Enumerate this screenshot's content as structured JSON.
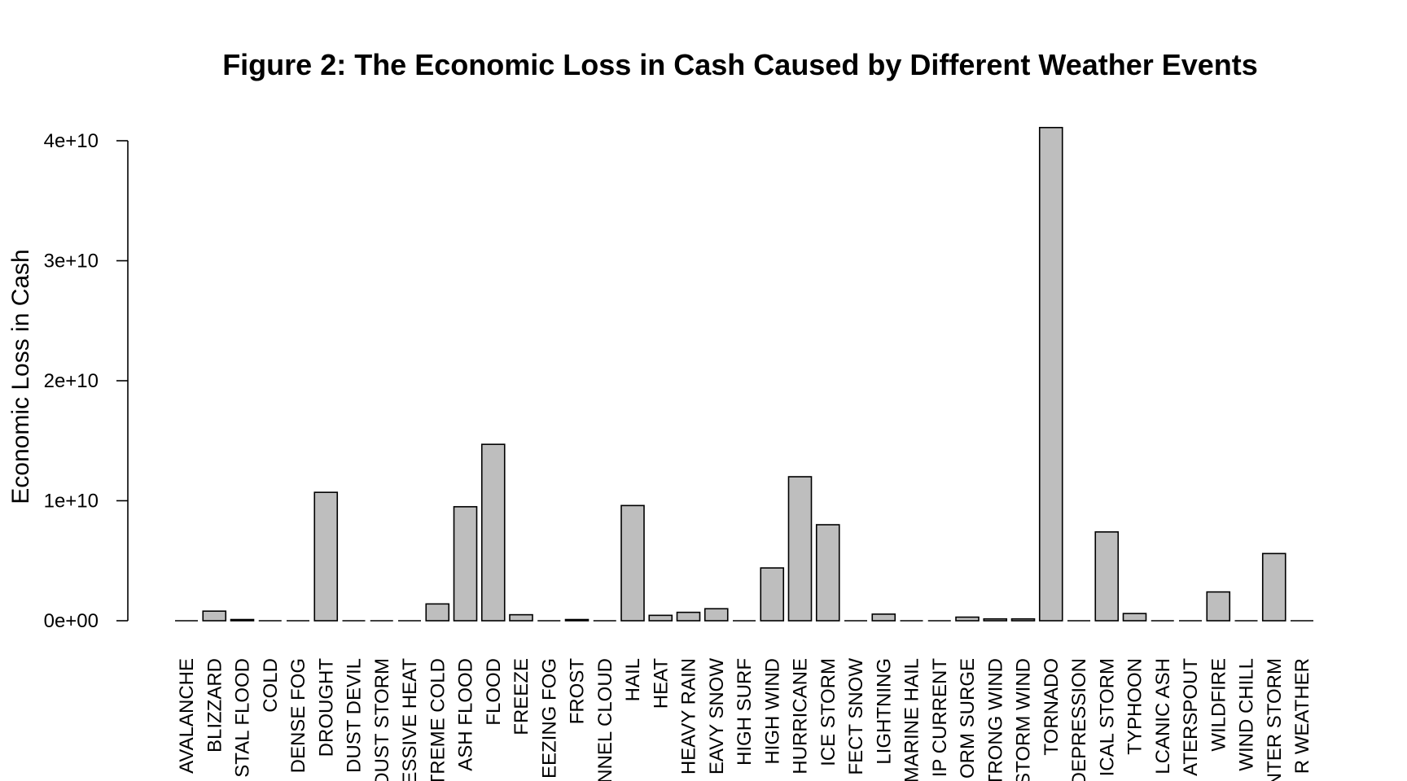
{
  "chart_data": {
    "type": "bar",
    "title": "Figure 2: The Economic Loss in Cash Caused by Different Weather Events",
    "xlabel": "",
    "ylabel": "Economic Loss in Cash",
    "ylim": [
      0,
      41000000000
    ],
    "yticks": [
      {
        "value": 0,
        "label": "0e+00"
      },
      {
        "value": 10000000000,
        "label": "1e+10"
      },
      {
        "value": 20000000000,
        "label": "2e+10"
      },
      {
        "value": 30000000000,
        "label": "3e+10"
      },
      {
        "value": 40000000000,
        "label": "4e+10"
      }
    ],
    "categories": [
      "AVALANCHE",
      "BLIZZARD",
      "STAL FLOOD",
      "COLD",
      "DENSE FOG",
      "DROUGHT",
      "DUST DEVIL",
      "DUST STORM",
      "ESSIVE HEAT",
      "TREME COLD",
      "ASH FLOOD",
      "FLOOD",
      "FREEZE",
      "EEZING FOG",
      "FROST",
      "NNEL CLOUD",
      "HAIL",
      "HEAT",
      "HEAVY RAIN",
      "EAVY SNOW",
      "HIGH SURF",
      "HIGH WIND",
      "HURRICANE",
      "ICE STORM",
      "FECT SNOW",
      "LIGHTNING",
      "MARINE HAIL",
      "IP CURRENT",
      "ORM SURGE",
      "TRONG WIND",
      "STORM WIND",
      "TORNADO",
      "DEPRESSION",
      "ICAL STORM",
      "TYPHOON",
      "LCANIC ASH",
      "ATERSPOUT",
      "WILDFIRE",
      "WIND CHILL",
      "NTER STORM",
      "R WEATHER"
    ],
    "values": [
      10000000,
      800000000,
      100000000,
      20000000,
      10000000,
      10700000000,
      5000000,
      5000000,
      20000000,
      1400000000,
      9500000000,
      14700000000,
      500000000,
      10000000,
      100000000,
      10000000,
      9600000000,
      450000000,
      700000000,
      1000000000,
      10000000,
      4400000000,
      12000000000,
      8000000000,
      20000000,
      550000000,
      5000000,
      5000000,
      300000000,
      150000000,
      150000000,
      41100000000,
      10000000,
      7400000000,
      600000000,
      5000000,
      5000000,
      2400000000,
      10000000,
      5600000000,
      10000000
    ],
    "bar_color": "#bebebe",
    "grid": false,
    "legend": "none"
  }
}
